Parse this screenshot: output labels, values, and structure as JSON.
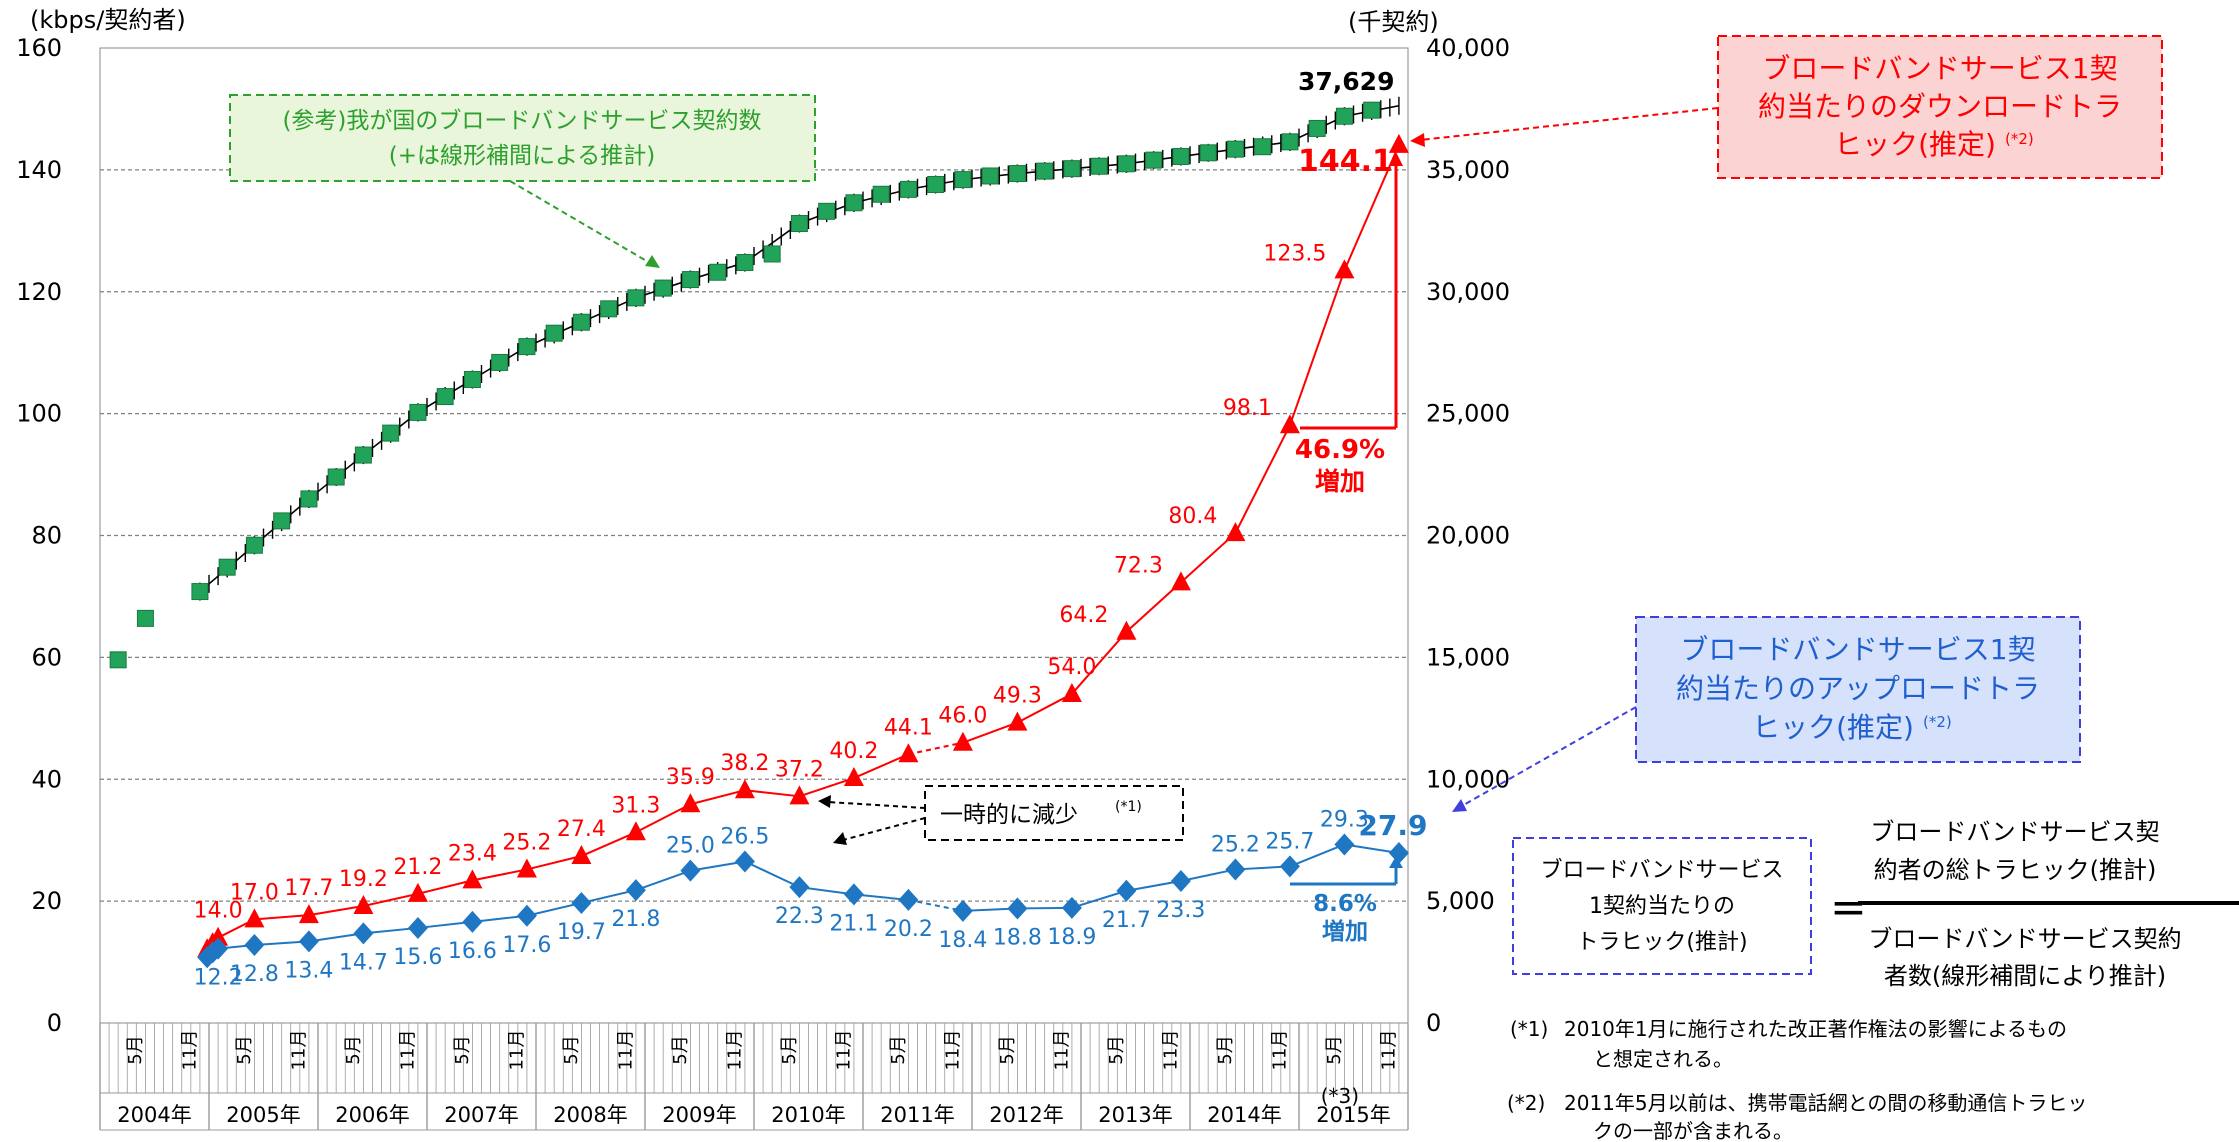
{
  "chart_data": {
    "type": "line",
    "left_axis": {
      "unit": "(kbps/契約者)",
      "ylim": [
        0,
        160
      ],
      "ticks": [
        "0",
        "20",
        "40",
        "60",
        "80",
        "100",
        "120",
        "140",
        "160"
      ]
    },
    "right_axis": {
      "unit": "(千契約)",
      "ylim": [
        0,
        40000
      ],
      "ticks": [
        "0",
        "5,000",
        "10,000",
        "15,000",
        "20,000",
        "25,000",
        "30,000",
        "35,000",
        "40,000"
      ]
    },
    "grid": true,
    "x_axis": {
      "month_labels": [
        "5月",
        "11月"
      ],
      "years": [
        "2004年",
        "2005年",
        "2006年",
        "2007年",
        "2008年",
        "2009年",
        "2010年",
        "2011年",
        "2012年",
        "2013年",
        "2014年",
        "2015年"
      ],
      "note": "(*3)"
    },
    "series": [
      {
        "name": "ブロードバンドサービス1契約当たりのダウンロードトラヒック(推定)",
        "color": "#ff0000",
        "marker": "triangle",
        "points": [
          {
            "x": 11.8,
            "y": 12.1,
            "label": ""
          },
          {
            "x": 12.4,
            "y": 13.1,
            "label": ""
          },
          {
            "x": 13,
            "y": 14.0,
            "label": "14.0"
          },
          {
            "x": 17,
            "y": 17.0,
            "label": "17.0"
          },
          {
            "x": 23,
            "y": 17.7,
            "label": "17.7"
          },
          {
            "x": 29,
            "y": 19.2,
            "label": "19.2"
          },
          {
            "x": 35,
            "y": 21.2,
            "label": "21.2"
          },
          {
            "x": 41,
            "y": 23.4,
            "label": "23.4"
          },
          {
            "x": 47,
            "y": 25.2,
            "label": "25.2"
          },
          {
            "x": 53,
            "y": 27.4,
            "label": "27.4"
          },
          {
            "x": 59,
            "y": 31.3,
            "label": "31.3"
          },
          {
            "x": 65,
            "y": 35.9,
            "label": "35.9"
          },
          {
            "x": 71,
            "y": 38.2,
            "label": "38.2"
          },
          {
            "x": 77,
            "y": 37.2,
            "label": "37.2"
          },
          {
            "x": 83,
            "y": 40.2,
            "label": "40.2"
          },
          {
            "x": 89,
            "y": 44.1,
            "label": "44.1"
          },
          {
            "x": 95,
            "y": 46.0,
            "label": "46.0"
          },
          {
            "x": 101,
            "y": 49.3,
            "label": "49.3"
          },
          {
            "x": 107,
            "y": 54.0,
            "label": "54.0"
          },
          {
            "x": 113,
            "y": 64.2,
            "label": "64.2"
          },
          {
            "x": 119,
            "y": 72.3,
            "label": "72.3"
          },
          {
            "x": 125,
            "y": 80.4,
            "label": "80.4"
          },
          {
            "x": 131,
            "y": 98.1,
            "label": "98.1"
          },
          {
            "x": 137,
            "y": 123.5,
            "label": "123.5"
          },
          {
            "x": 143,
            "y": 144.1,
            "label": "144.1"
          }
        ]
      },
      {
        "name": "ブロードバンドサービス1契約当たりのアップロードトラヒック(推定)",
        "color": "#1f77c4",
        "marker": "diamond",
        "points": [
          {
            "x": 11.8,
            "y": 10.8,
            "label": ""
          },
          {
            "x": 12.4,
            "y": 11.6,
            "label": ""
          },
          {
            "x": 13,
            "y": 12.2,
            "label": "12.2"
          },
          {
            "x": 17,
            "y": 12.8,
            "label": "12.8"
          },
          {
            "x": 23,
            "y": 13.4,
            "label": "13.4"
          },
          {
            "x": 29,
            "y": 14.7,
            "label": "14.7"
          },
          {
            "x": 35,
            "y": 15.6,
            "label": "15.6"
          },
          {
            "x": 41,
            "y": 16.6,
            "label": "16.6"
          },
          {
            "x": 47,
            "y": 17.6,
            "label": "17.6"
          },
          {
            "x": 53,
            "y": 19.7,
            "label": "19.7"
          },
          {
            "x": 59,
            "y": 21.8,
            "label": "21.8"
          },
          {
            "x": 65,
            "y": 25.0,
            "label": "25.0"
          },
          {
            "x": 71,
            "y": 26.5,
            "label": "26.5"
          },
          {
            "x": 77,
            "y": 22.3,
            "label": "22.3"
          },
          {
            "x": 83,
            "y": 21.1,
            "label": "21.1"
          },
          {
            "x": 89,
            "y": 20.2,
            "label": "20.2"
          },
          {
            "x": 95,
            "y": 18.4,
            "label": "18.4"
          },
          {
            "x": 101,
            "y": 18.8,
            "label": "18.8"
          },
          {
            "x": 107,
            "y": 18.9,
            "label": "18.9"
          },
          {
            "x": 113,
            "y": 21.7,
            "label": "21.7"
          },
          {
            "x": 119,
            "y": 23.3,
            "label": "23.3"
          },
          {
            "x": 125,
            "y": 25.2,
            "label": "25.2"
          },
          {
            "x": 131,
            "y": 25.7,
            "label": "25.7"
          },
          {
            "x": 137,
            "y": 29.3,
            "label": "29.3"
          },
          {
            "x": 143,
            "y": 27.9,
            "label": "27.9"
          }
        ]
      },
      {
        "name": "(参考)我が国のブロードバンドサービス契約数",
        "color": "#21a35a",
        "marker": "square",
        "axis": "right",
        "end_label": "37,629",
        "points": [
          {
            "x": 2,
            "y": 14900
          },
          {
            "x": 5,
            "y": 16600
          },
          {
            "x": 11,
            "y": 17700
          },
          {
            "x": 14,
            "y": 18700
          },
          {
            "x": 17,
            "y": 19600
          },
          {
            "x": 20,
            "y": 20600
          },
          {
            "x": 23,
            "y": 21500
          },
          {
            "x": 26,
            "y": 22400
          },
          {
            "x": 29,
            "y": 23300
          },
          {
            "x": 32,
            "y": 24200
          },
          {
            "x": 35,
            "y": 25050
          },
          {
            "x": 38,
            "y": 25700
          },
          {
            "x": 41,
            "y": 26400
          },
          {
            "x": 44,
            "y": 27100
          },
          {
            "x": 47,
            "y": 27750
          },
          {
            "x": 50,
            "y": 28300
          },
          {
            "x": 53,
            "y": 28750
          },
          {
            "x": 56,
            "y": 29300
          },
          {
            "x": 59,
            "y": 29750
          },
          {
            "x": 62,
            "y": 30150
          },
          {
            "x": 65,
            "y": 30500
          },
          {
            "x": 68,
            "y": 30800
          },
          {
            "x": 71,
            "y": 31200
          },
          {
            "x": 74,
            "y": 31550
          },
          {
            "x": 77,
            "y": 32800
          },
          {
            "x": 80,
            "y": 33300
          },
          {
            "x": 83,
            "y": 33650
          },
          {
            "x": 86,
            "y": 34000
          },
          {
            "x": 89,
            "y": 34200
          },
          {
            "x": 92,
            "y": 34400
          },
          {
            "x": 95,
            "y": 34600
          },
          {
            "x": 98,
            "y": 34750
          },
          {
            "x": 101,
            "y": 34850
          },
          {
            "x": 104,
            "y": 34950
          },
          {
            "x": 107,
            "y": 35050
          },
          {
            "x": 110,
            "y": 35150
          },
          {
            "x": 113,
            "y": 35250
          },
          {
            "x": 116,
            "y": 35400
          },
          {
            "x": 119,
            "y": 35550
          },
          {
            "x": 122,
            "y": 35700
          },
          {
            "x": 125,
            "y": 35850
          },
          {
            "x": 128,
            "y": 35950
          },
          {
            "x": 131,
            "y": 36150
          },
          {
            "x": 134,
            "y": 36700
          },
          {
            "x": 137,
            "y": 37200
          },
          {
            "x": 140,
            "y": 37450
          }
        ],
        "interp_points": [
          {
            "x": 11,
            "y": 17700
          },
          {
            "x": 17,
            "y": 19600
          },
          {
            "x": 23,
            "y": 21500
          },
          {
            "x": 29,
            "y": 23300
          },
          {
            "x": 35,
            "y": 25050
          },
          {
            "x": 41,
            "y": 26400
          },
          {
            "x": 47,
            "y": 27750
          },
          {
            "x": 53,
            "y": 28750
          },
          {
            "x": 59,
            "y": 29750
          },
          {
            "x": 65,
            "y": 30500
          },
          {
            "x": 71,
            "y": 31200
          },
          {
            "x": 77,
            "y": 32800
          },
          {
            "x": 83,
            "y": 33650
          },
          {
            "x": 89,
            "y": 34200
          },
          {
            "x": 95,
            "y": 34600
          },
          {
            "x": 101,
            "y": 34850
          },
          {
            "x": 107,
            "y": 35050
          },
          {
            "x": 113,
            "y": 35250
          },
          {
            "x": 119,
            "y": 35550
          },
          {
            "x": 125,
            "y": 35850
          },
          {
            "x": 131,
            "y": 36150
          },
          {
            "x": 137,
            "y": 37200
          },
          {
            "x": 143,
            "y": 37629
          }
        ]
      }
    ],
    "annotations": {
      "bb_callout": [
        "(参考)我が国のブロードバンドサービス契約数",
        "(+は線形補間による推計)"
      ],
      "down_callout": [
        "ブロードバンドサービス1契",
        "約当たりのダウンロードトラ",
        "ヒック(推定)",
        "(*2)"
      ],
      "up_callout": [
        "ブロードバンドサービス1契",
        "約当たりのアップロードトラ",
        "ヒック(推定)",
        "(*2)"
      ],
      "decrease": {
        "text": "一時的に減少",
        "sup": "(*1)"
      },
      "down_increase": [
        "46.9%",
        "増加"
      ],
      "up_increase": [
        "8.6%",
        "増加"
      ],
      "formula": {
        "left": [
          "ブロードバンドサービス",
          "1契約当たりの",
          "トラヒック(推計)"
        ],
        "eq": "=",
        "numerator": [
          "ブロードバンドサービス契",
          "約者の総トラヒック(推計)"
        ],
        "denominator": [
          "ブロードバンドサービス契約",
          "者数(線形補間により推計)"
        ]
      },
      "notes": [
        [
          "(*1)",
          "2010年1月に施行された改正著作権法の影響によるもの",
          "と想定される。"
        ],
        [
          "(*2)",
          "2011年5月以前は、携帯電話網との間の移動通信トラヒッ",
          "クの一部が含まれる。"
        ]
      ]
    }
  }
}
